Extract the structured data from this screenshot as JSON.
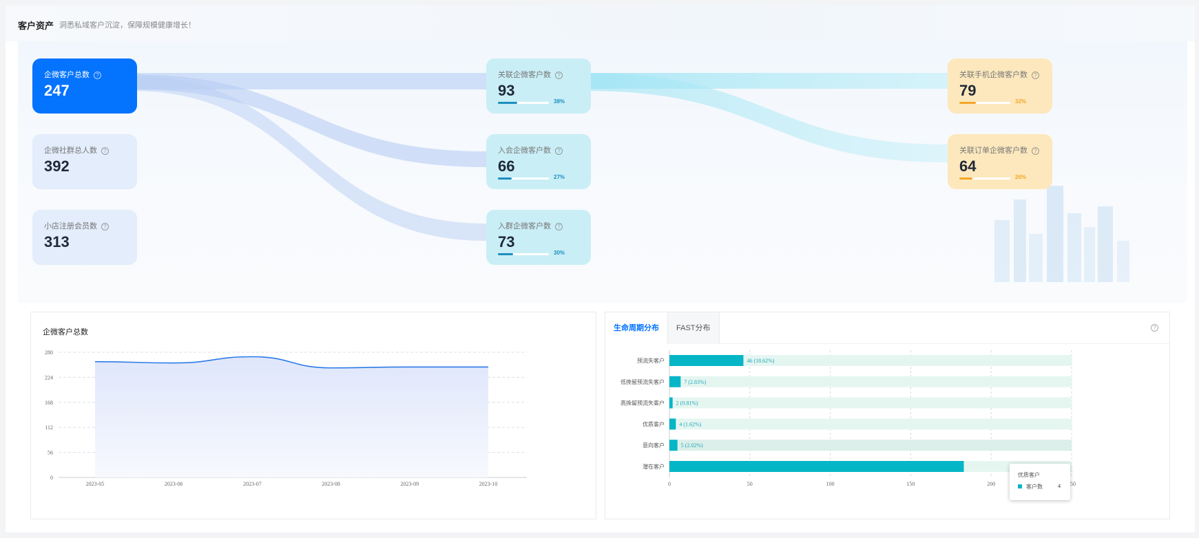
{
  "header": {
    "title": "客户资产",
    "subtitle": "洞悉私域客户沉淀，保障规模健康增长！"
  },
  "cards": {
    "total": {
      "label": "企微客户总数",
      "value": "247"
    },
    "group_people": {
      "label": "企微社群总人数",
      "value": "392"
    },
    "shop_members": {
      "label": "小店注册会员数",
      "value": "313"
    },
    "linked": {
      "label": "关联企微客户数",
      "value": "93",
      "percent": "38%",
      "ratio": 0.38
    },
    "joined_member": {
      "label": "入会企微客户数",
      "value": "66",
      "percent": "27%",
      "ratio": 0.27
    },
    "joined_group": {
      "label": "入群企微客户数",
      "value": "73",
      "percent": "30%",
      "ratio": 0.3
    },
    "linked_phone": {
      "label": "关联手机企微客户数",
      "value": "79",
      "percent": "32%",
      "ratio": 0.32
    },
    "linked_order": {
      "label": "关联订单企微客户数",
      "value": "64",
      "percent": "26%",
      "ratio": 0.26
    }
  },
  "help_glyph": "?",
  "colors": {
    "primary": "#0473fe",
    "cyan": "#05b6c6",
    "yellow": "#f3a626",
    "line": "#2b7be6"
  },
  "line_panel": {
    "title": "企微客户总数"
  },
  "bar_panel": {
    "tabs": [
      "生命周期分布",
      "FAST分布"
    ]
  },
  "tooltip": {
    "title": "优质客户",
    "series": "客户数",
    "value": "4"
  },
  "chart_data": [
    {
      "type": "area",
      "title": "企微客户总数",
      "x": [
        "2023-05",
        "2023-06",
        "2023-07",
        "2023-08",
        "2023-09",
        "2023-10"
      ],
      "ylim": [
        0,
        280
      ],
      "yticks": [
        "0",
        "56",
        "112",
        "168",
        "224",
        "280"
      ],
      "series": [
        {
          "values": [
            259,
            256,
            270,
            245,
            247,
            247
          ]
        }
      ],
      "grid": true
    },
    {
      "type": "bar",
      "orientation": "horizontal",
      "categories": [
        "预流失客户",
        "低挽留预流失客户",
        "高挽留预流失客户",
        "优质客户",
        "意向客户",
        "潜在客户"
      ],
      "values": [
        46,
        7,
        2,
        4,
        5,
        183
      ],
      "labels": [
        "46 (18.62%)",
        "7 (2.83%)",
        "2 (0.81%)",
        "4 (1.62%)",
        "5 (2.02%)",
        ""
      ],
      "xlim": [
        0,
        250
      ],
      "xticks": [
        "0",
        "50",
        "100",
        "150",
        "200",
        "250"
      ]
    }
  ]
}
